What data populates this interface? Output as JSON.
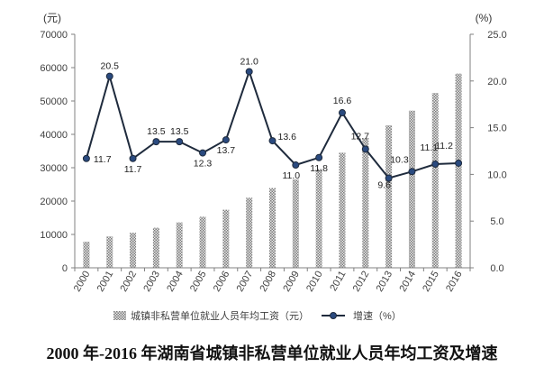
{
  "chart_data": {
    "type": "bar",
    "title": "2000 年-2016 年湖南省城镇非私营单位就业人员年均工资及增速",
    "categories": [
      "2000",
      "2001",
      "2002",
      "2003",
      "2004",
      "2005",
      "2006",
      "2007",
      "2008",
      "2009",
      "2010",
      "2011",
      "2012",
      "2013",
      "2014",
      "2015",
      "2016"
    ],
    "series": [
      {
        "name": "城镇非私营单位就业人员年均工资（元）",
        "type": "bar",
        "axis": "left",
        "values": [
          7800,
          9400,
          10500,
          12000,
          13600,
          15300,
          17400,
          21000,
          23900,
          26500,
          29600,
          34500,
          38900,
          42700,
          47100,
          52400,
          58200
        ]
      },
      {
        "name": "增速（%）",
        "type": "line",
        "axis": "right",
        "values": [
          11.7,
          20.5,
          11.7,
          13.5,
          13.5,
          12.3,
          13.7,
          21.0,
          13.6,
          11.0,
          11.8,
          16.6,
          12.7,
          9.6,
          10.3,
          11.1,
          11.2
        ],
        "labels": [
          "11.7",
          "20.5",
          "11.7",
          "13.5",
          "13.5",
          "12.3",
          "13.7",
          "21.0",
          "13.6",
          "11.0",
          "11.8",
          "16.6",
          "12.7",
          "9.6",
          "10.3",
          "11.1",
          "11.2"
        ]
      }
    ],
    "y_left": {
      "unit": "(元)",
      "ylim": [
        0,
        70000
      ],
      "ticks": [
        "0",
        "10000",
        "20000",
        "30000",
        "40000",
        "50000",
        "60000",
        "70000"
      ]
    },
    "y_right": {
      "unit": "(%)",
      "ylim": [
        0,
        25
      ],
      "ticks": [
        "0.0",
        "5.0",
        "10.0",
        "15.0",
        "20.0",
        "25.0"
      ]
    },
    "grid": false,
    "legend_position": "bottom",
    "colors": {
      "bar": "#9a9a9a",
      "line": "#1f2b3d",
      "marker": "#2a4a7f",
      "axis": "#808080"
    }
  }
}
